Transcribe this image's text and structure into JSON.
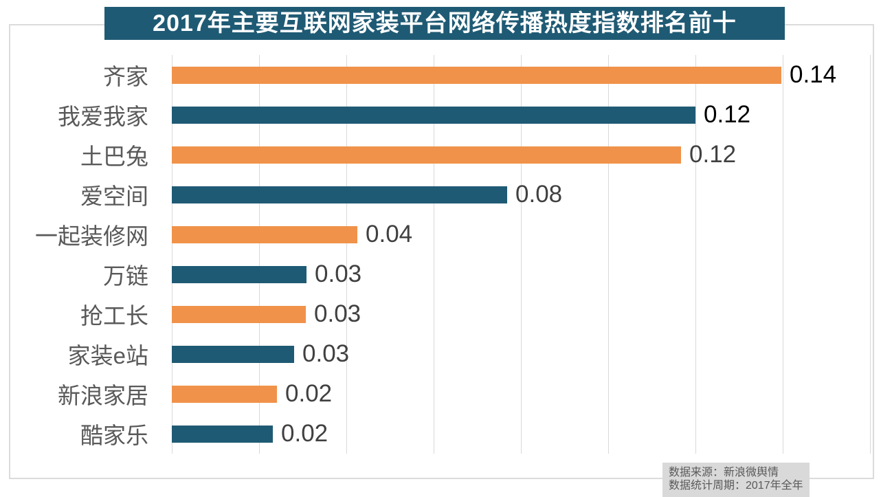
{
  "title": {
    "text": "2017年主要互联网家装平台网络传播热度指数排名前十"
  },
  "source_note": {
    "line1": "数据来源：新浪微舆情",
    "line2": "数据统计周期：2017年全年"
  },
  "colors": {
    "background": "#FFFFFF",
    "title_bg": "#1F5A74",
    "title_text": "#FFFFFF",
    "bar_orange": "#F0924A",
    "bar_blue": "#1F5A74",
    "category_label": "#595959",
    "value_label_primary": "#000000",
    "value_label_secondary": "#404040",
    "gridline": "#D9D9D9",
    "frame_border": "#DBDBDB",
    "source_bg": "#D9D9D9",
    "source_text": "#595959"
  },
  "chart_data": {
    "type": "bar",
    "orientation": "horizontal",
    "title": "2017年主要互联网家装平台网络传播热度指数排名前十",
    "categories": [
      "齐家",
      "我爱我家",
      "土巴兔",
      "爱空间",
      "一起装修网",
      "万链",
      "抢工长",
      "家装e站",
      "新浪家居",
      "酷家乐"
    ],
    "values": [
      0.14,
      0.12,
      0.12,
      0.08,
      0.04,
      0.03,
      0.03,
      0.03,
      0.02,
      0.02
    ],
    "value_labels": [
      "0.14",
      "0.12",
      "0.12",
      "0.08",
      "0.04",
      "0.03",
      "0.03",
      "0.03",
      "0.02",
      "0.02"
    ],
    "bar_lengths_precise": [
      0.1397,
      0.12,
      0.1167,
      0.0769,
      0.0425,
      0.0309,
      0.0307,
      0.028,
      0.0241,
      0.0231
    ],
    "bar_colors": [
      "#F0924A",
      "#1F5A74",
      "#F0924A",
      "#1F5A74",
      "#F0924A",
      "#1F5A74",
      "#F0924A",
      "#1F5A74",
      "#F0924A",
      "#1F5A74"
    ],
    "value_label_colors": [
      "#000000",
      "#000000",
      "#404040",
      "#404040",
      "#404040",
      "#404040",
      "#404040",
      "#404040",
      "#404040",
      "#404040"
    ],
    "xlabel": "",
    "ylabel": "",
    "xlim": [
      0,
      0.16
    ],
    "grid_step": 0.02,
    "grid": true,
    "legend": false,
    "x_tick_labels_visible": false
  }
}
